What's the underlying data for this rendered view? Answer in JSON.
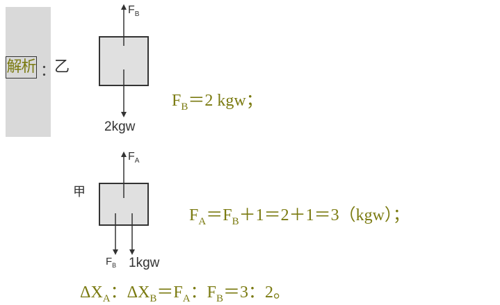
{
  "sidebar": {
    "tag": "解析",
    "colon": "："
  },
  "part_yi": {
    "label": "乙",
    "force_up": "F",
    "force_up_sub": "B",
    "force_down": "2kgw",
    "equation": "F",
    "equation_sub": "B",
    "equation_rest": "＝2 kgw；"
  },
  "part_jia": {
    "label": "甲",
    "force_up": "F",
    "force_up_sub": "A",
    "force_down_1": "F",
    "force_down_1_sub": "B",
    "force_down_2": "1kgw",
    "equation": "F",
    "equation_sub": "A",
    "equation_mid": "＝F",
    "equation_sub2": "B",
    "equation_rest": "＋1＝2＋1＝3（kgw）；"
  },
  "ratio": {
    "delta": "Δ",
    "x": "X",
    "sub_a": "A",
    "sep": "：Δ",
    "x2": "X",
    "sub_b": "B",
    "eq": "＝F",
    "sub_fa": "A",
    "sep2": "：F",
    "sub_fb": "B",
    "rest": "＝3：2。"
  },
  "colors": {
    "accent": "#7a7a10",
    "box_fill": "#e0e0e0",
    "sidebar": "#d9d9d9"
  }
}
